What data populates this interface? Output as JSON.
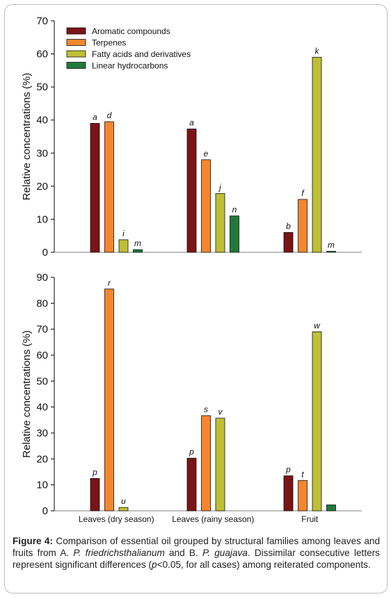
{
  "chart_data": [
    {
      "type": "bar",
      "ylabel": "Relative concentrations (%)",
      "ylim": [
        0,
        70
      ],
      "yticks": [
        0,
        10,
        20,
        30,
        40,
        50,
        60,
        70
      ],
      "legend_position": "top-left",
      "categories": [
        "Leaves (dry season)",
        "Leaves (rainy season)",
        "Fruit"
      ],
      "series": [
        {
          "name": "Aromatic compounds",
          "color": "#7b1416",
          "values": [
            39,
            37.3,
            6
          ],
          "letters": [
            "a",
            "a",
            "b"
          ]
        },
        {
          "name": "Terpenes",
          "color": "#f5862e",
          "values": [
            39.5,
            28,
            16
          ],
          "letters": [
            "d",
            "e",
            "f"
          ]
        },
        {
          "name": "Fatty acids and derivatives",
          "color": "#bfbf36",
          "values": [
            3.8,
            17.8,
            59
          ],
          "letters": [
            "i",
            "j",
            "k"
          ]
        },
        {
          "name": "Linear hydrocarbons",
          "color": "#1f7a3a",
          "values": [
            0.8,
            11,
            0.3
          ],
          "letters": [
            "m",
            "n",
            "m"
          ]
        }
      ]
    },
    {
      "type": "bar",
      "ylabel": "Relative concentrations (%)",
      "ylim": [
        0,
        90
      ],
      "yticks": [
        0,
        10,
        20,
        30,
        40,
        50,
        60,
        70,
        80,
        90
      ],
      "categories": [
        "Leaves (dry season)",
        "Leaves (rainy season)",
        "Fruit"
      ],
      "series": [
        {
          "name": "Aromatic compounds",
          "color": "#7b1416",
          "values": [
            12.5,
            20.3,
            13.5
          ],
          "letters": [
            "p",
            "p",
            "p"
          ]
        },
        {
          "name": "Terpenes",
          "color": "#f5862e",
          "values": [
            85.5,
            36.7,
            11.7
          ],
          "letters": [
            "r",
            "s",
            "t"
          ]
        },
        {
          "name": "Fatty acids and derivatives",
          "color": "#bfbf36",
          "values": [
            1.3,
            35.7,
            69
          ],
          "letters": [
            "u",
            "v",
            "w"
          ]
        },
        {
          "name": "Linear hydrocarbons",
          "color": "#1f7a3a",
          "values": [
            0,
            0,
            2.3
          ],
          "letters": [
            "",
            "",
            ""
          ]
        }
      ]
    }
  ],
  "caption": {
    "label": "Figure 4:",
    "t1": " Comparison of essential oil grouped by structural families among leaves and fruits from A. ",
    "sp1": "P. friedrichsthalianum",
    "t2": " and B. ",
    "sp2": "P. guajava",
    "t3": ". Dissimilar consecutive letters represent significant differences (",
    "pvar": "p",
    "t4": "<0.05, for all cases) among reiterated components."
  }
}
